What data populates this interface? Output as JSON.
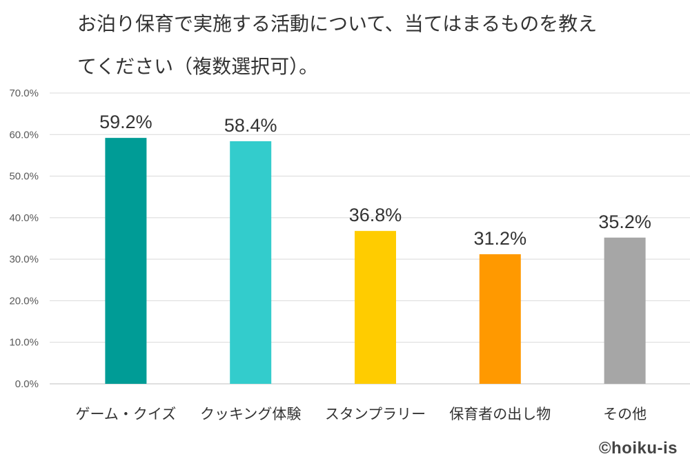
{
  "title_line1": "お泊り保育で実施する活動について、当てはまるものを教え",
  "title_line2": "てください（複数選択可）。",
  "credit": "©hoiku-is",
  "chart_data": {
    "type": "bar",
    "title": "お泊り保育で実施する活動について、当てはまるものを教えてください（複数選択可）。",
    "categories": [
      "ゲーム・クイズ",
      "クッキング体験",
      "スタンプラリー",
      "保育者の出し物",
      "その他"
    ],
    "values": [
      59.2,
      58.4,
      36.8,
      31.2,
      35.2
    ],
    "value_labels": [
      "59.2%",
      "58.4%",
      "36.8%",
      "31.2%",
      "35.2%"
    ],
    "colors": [
      "#009C96",
      "#33CCCC",
      "#FFCC00",
      "#FF9900",
      "#A6A6A6"
    ],
    "y_ticks": [
      "0.0%",
      "10.0%",
      "20.0%",
      "30.0%",
      "40.0%",
      "50.0%",
      "60.0%",
      "70.0%"
    ],
    "ylim": [
      0,
      70
    ],
    "grid": true,
    "xlabel": "",
    "ylabel": ""
  }
}
